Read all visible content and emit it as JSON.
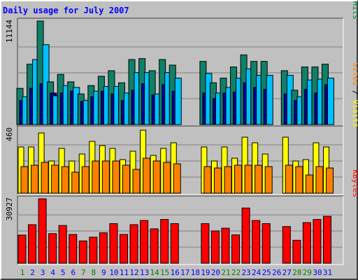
{
  "title": "Daily usage for July 2007",
  "chart_data": [
    {
      "type": "bar",
      "panel": "hits-files-pages",
      "max_label": "11144",
      "ylim": [
        0,
        11144
      ],
      "legend": [
        {
          "name": "Pages",
          "color": "#00c0ff"
        },
        {
          "name": "Files",
          "color": "#0000ff"
        },
        {
          "name": "Hits",
          "color": "#008040"
        }
      ],
      "legend_separator": " / ",
      "separator_color": "#000000",
      "categories": [
        "1",
        "2",
        "3",
        "4",
        "5",
        "6",
        "7",
        "8",
        "9",
        "10",
        "11",
        "12",
        "13",
        "14",
        "15",
        "16",
        "17",
        "18",
        "19",
        "20",
        "21",
        "22",
        "23",
        "24",
        "25",
        "26",
        "27",
        "28",
        "29",
        "30",
        "31"
      ],
      "weekend_days": [
        "1",
        "7",
        "8",
        "14",
        "15",
        "21",
        "22",
        "28",
        "29"
      ],
      "weekend_color": "#008000",
      "weekday_color": "#0000ff",
      "series": [
        {
          "name": "Hits",
          "color": "#108068",
          "values": [
            3900,
            6500,
            11144,
            4600,
            5400,
            4600,
            3300,
            4200,
            5200,
            5800,
            4500,
            7000,
            7100,
            5800,
            7000,
            6400,
            0,
            0,
            6800,
            4500,
            5000,
            6200,
            7500,
            6800,
            6800,
            0,
            5800,
            3700,
            6200,
            6200,
            6500
          ]
        },
        {
          "name": "Files",
          "color": "#0000a0",
          "values": [
            2600,
            3900,
            4400,
            3400,
            3400,
            3600,
            2500,
            3000,
            3600,
            3300,
            2600,
            3700,
            4400,
            3200,
            4300,
            3600,
            0,
            0,
            3400,
            2800,
            3400,
            3500,
            4500,
            4000,
            3800,
            0,
            3300,
            2600,
            3800,
            3400,
            4300
          ]
        },
        {
          "name": "Pages",
          "color": "#00c0ff",
          "values": [
            3000,
            7000,
            8600,
            3100,
            4200,
            4000,
            2600,
            3600,
            4100,
            4100,
            3400,
            5600,
            5600,
            3300,
            5600,
            5000,
            0,
            0,
            5500,
            3400,
            4000,
            5000,
            6000,
            5300,
            5300,
            0,
            5300,
            3000,
            4800,
            4900,
            5000
          ]
        }
      ]
    },
    {
      "type": "bar",
      "panel": "visits-sites",
      "max_label": "460",
      "ylim": [
        0,
        460
      ],
      "legend": [
        {
          "name": "Sites",
          "color": "#ff8000"
        },
        {
          "name": "Visits",
          "color": "#ffff00"
        }
      ],
      "legend_separator": " / ",
      "separator_color": "#000000",
      "categories": [
        "1",
        "2",
        "3",
        "4",
        "5",
        "6",
        "7",
        "8",
        "9",
        "10",
        "11",
        "12",
        "13",
        "14",
        "15",
        "16",
        "17",
        "18",
        "19",
        "20",
        "21",
        "22",
        "23",
        "24",
        "25",
        "26",
        "27",
        "28",
        "29",
        "30",
        "31"
      ],
      "series": [
        {
          "name": "Visits",
          "color": "#ffff00",
          "values": [
            330,
            330,
            430,
            230,
            320,
            230,
            280,
            370,
            340,
            320,
            240,
            300,
            450,
            270,
            320,
            360,
            0,
            0,
            330,
            230,
            330,
            250,
            400,
            360,
            280,
            0,
            400,
            230,
            240,
            360,
            330
          ]
        },
        {
          "name": "Sites",
          "color": "#ff8000",
          "values": [
            190,
            200,
            220,
            200,
            190,
            150,
            190,
            230,
            230,
            230,
            200,
            170,
            250,
            230,
            220,
            210,
            0,
            0,
            190,
            180,
            190,
            200,
            200,
            200,
            190,
            0,
            200,
            190,
            130,
            190,
            180
          ]
        }
      ]
    },
    {
      "type": "bar",
      "panel": "kbytes",
      "max_label": "30927",
      "ylim": [
        0,
        30927
      ],
      "legend": [
        {
          "name": "KBytes",
          "color": "#ff0000"
        }
      ],
      "categories": [
        "1",
        "2",
        "3",
        "4",
        "5",
        "6",
        "7",
        "8",
        "9",
        "10",
        "11",
        "12",
        "13",
        "14",
        "15",
        "16",
        "17",
        "18",
        "19",
        "20",
        "21",
        "22",
        "23",
        "24",
        "25",
        "26",
        "27",
        "28",
        "29",
        "30",
        "31"
      ],
      "series": [
        {
          "name": "KBytes",
          "color": "#ff0000",
          "values": [
            13500,
            18500,
            30927,
            14200,
            18100,
            13800,
            10700,
            12500,
            14600,
            19000,
            13800,
            18500,
            20500,
            16500,
            21000,
            19000,
            0,
            0,
            19000,
            15500,
            16800,
            13600,
            26500,
            20500,
            19000,
            0,
            17600,
            11000,
            19500,
            21000,
            22500
          ]
        }
      ]
    }
  ]
}
